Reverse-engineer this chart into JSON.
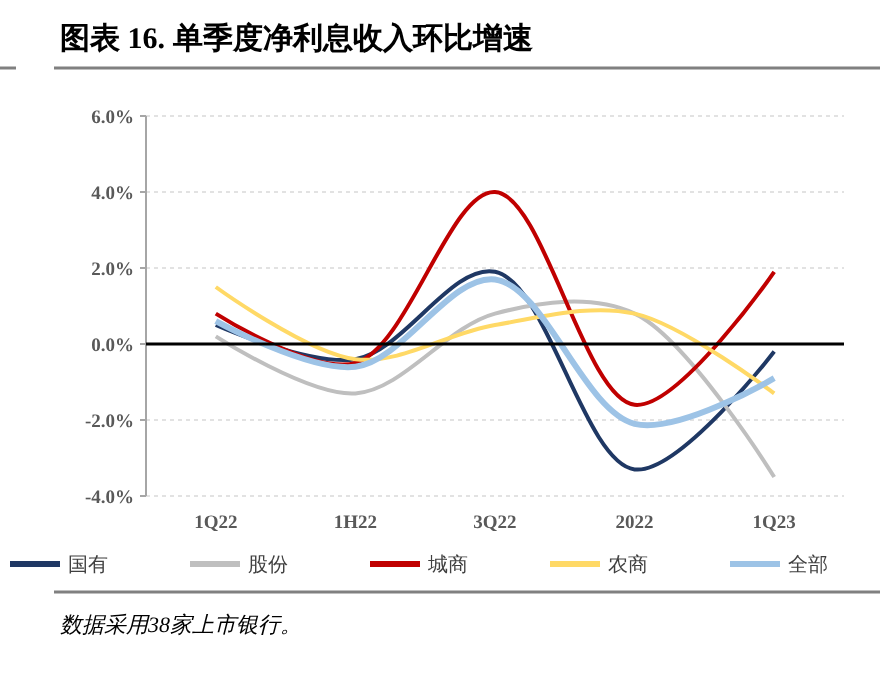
{
  "chart_data": {
    "type": "line",
    "title": "图表 16. 单季度净利息收入环比增速",
    "categories": [
      "1Q22",
      "1H22",
      "3Q22",
      "2022",
      "1Q23"
    ],
    "series": [
      {
        "name": "国有",
        "color": "#1f3864",
        "values": [
          0.5,
          -0.4,
          1.9,
          -3.3,
          -0.2
        ]
      },
      {
        "name": "股份",
        "color": "#bfbfbf",
        "values": [
          0.2,
          -1.3,
          0.8,
          0.8,
          -3.5
        ]
      },
      {
        "name": "城商",
        "color": "#c00000",
        "values": [
          0.8,
          -0.5,
          4.0,
          -1.6,
          1.9
        ]
      },
      {
        "name": "农商",
        "color": "#ffd966",
        "values": [
          1.5,
          -0.4,
          0.5,
          0.8,
          -1.3
        ]
      },
      {
        "name": "全部",
        "color": "#9dc3e6",
        "values": [
          0.6,
          -0.6,
          1.7,
          -2.1,
          -0.9
        ]
      }
    ],
    "ylim": [
      -4,
      6
    ],
    "yticks": [
      {
        "value": -4,
        "label": "-4.0%"
      },
      {
        "value": -2,
        "label": "-2.0%"
      },
      {
        "value": 0,
        "label": "0.0%"
      },
      {
        "value": 2,
        "label": "2.0%"
      },
      {
        "value": 4,
        "label": "4.0%"
      },
      {
        "value": 6,
        "label": "6.0%"
      }
    ],
    "ref_lines": [
      {
        "axis": "y",
        "value": 0,
        "color": "#000000"
      }
    ],
    "grid": "y",
    "legend": "bottom",
    "marker": "none",
    "line_style": "solid",
    "annotations": [
      "数据采用38家上市银行。"
    ]
  }
}
